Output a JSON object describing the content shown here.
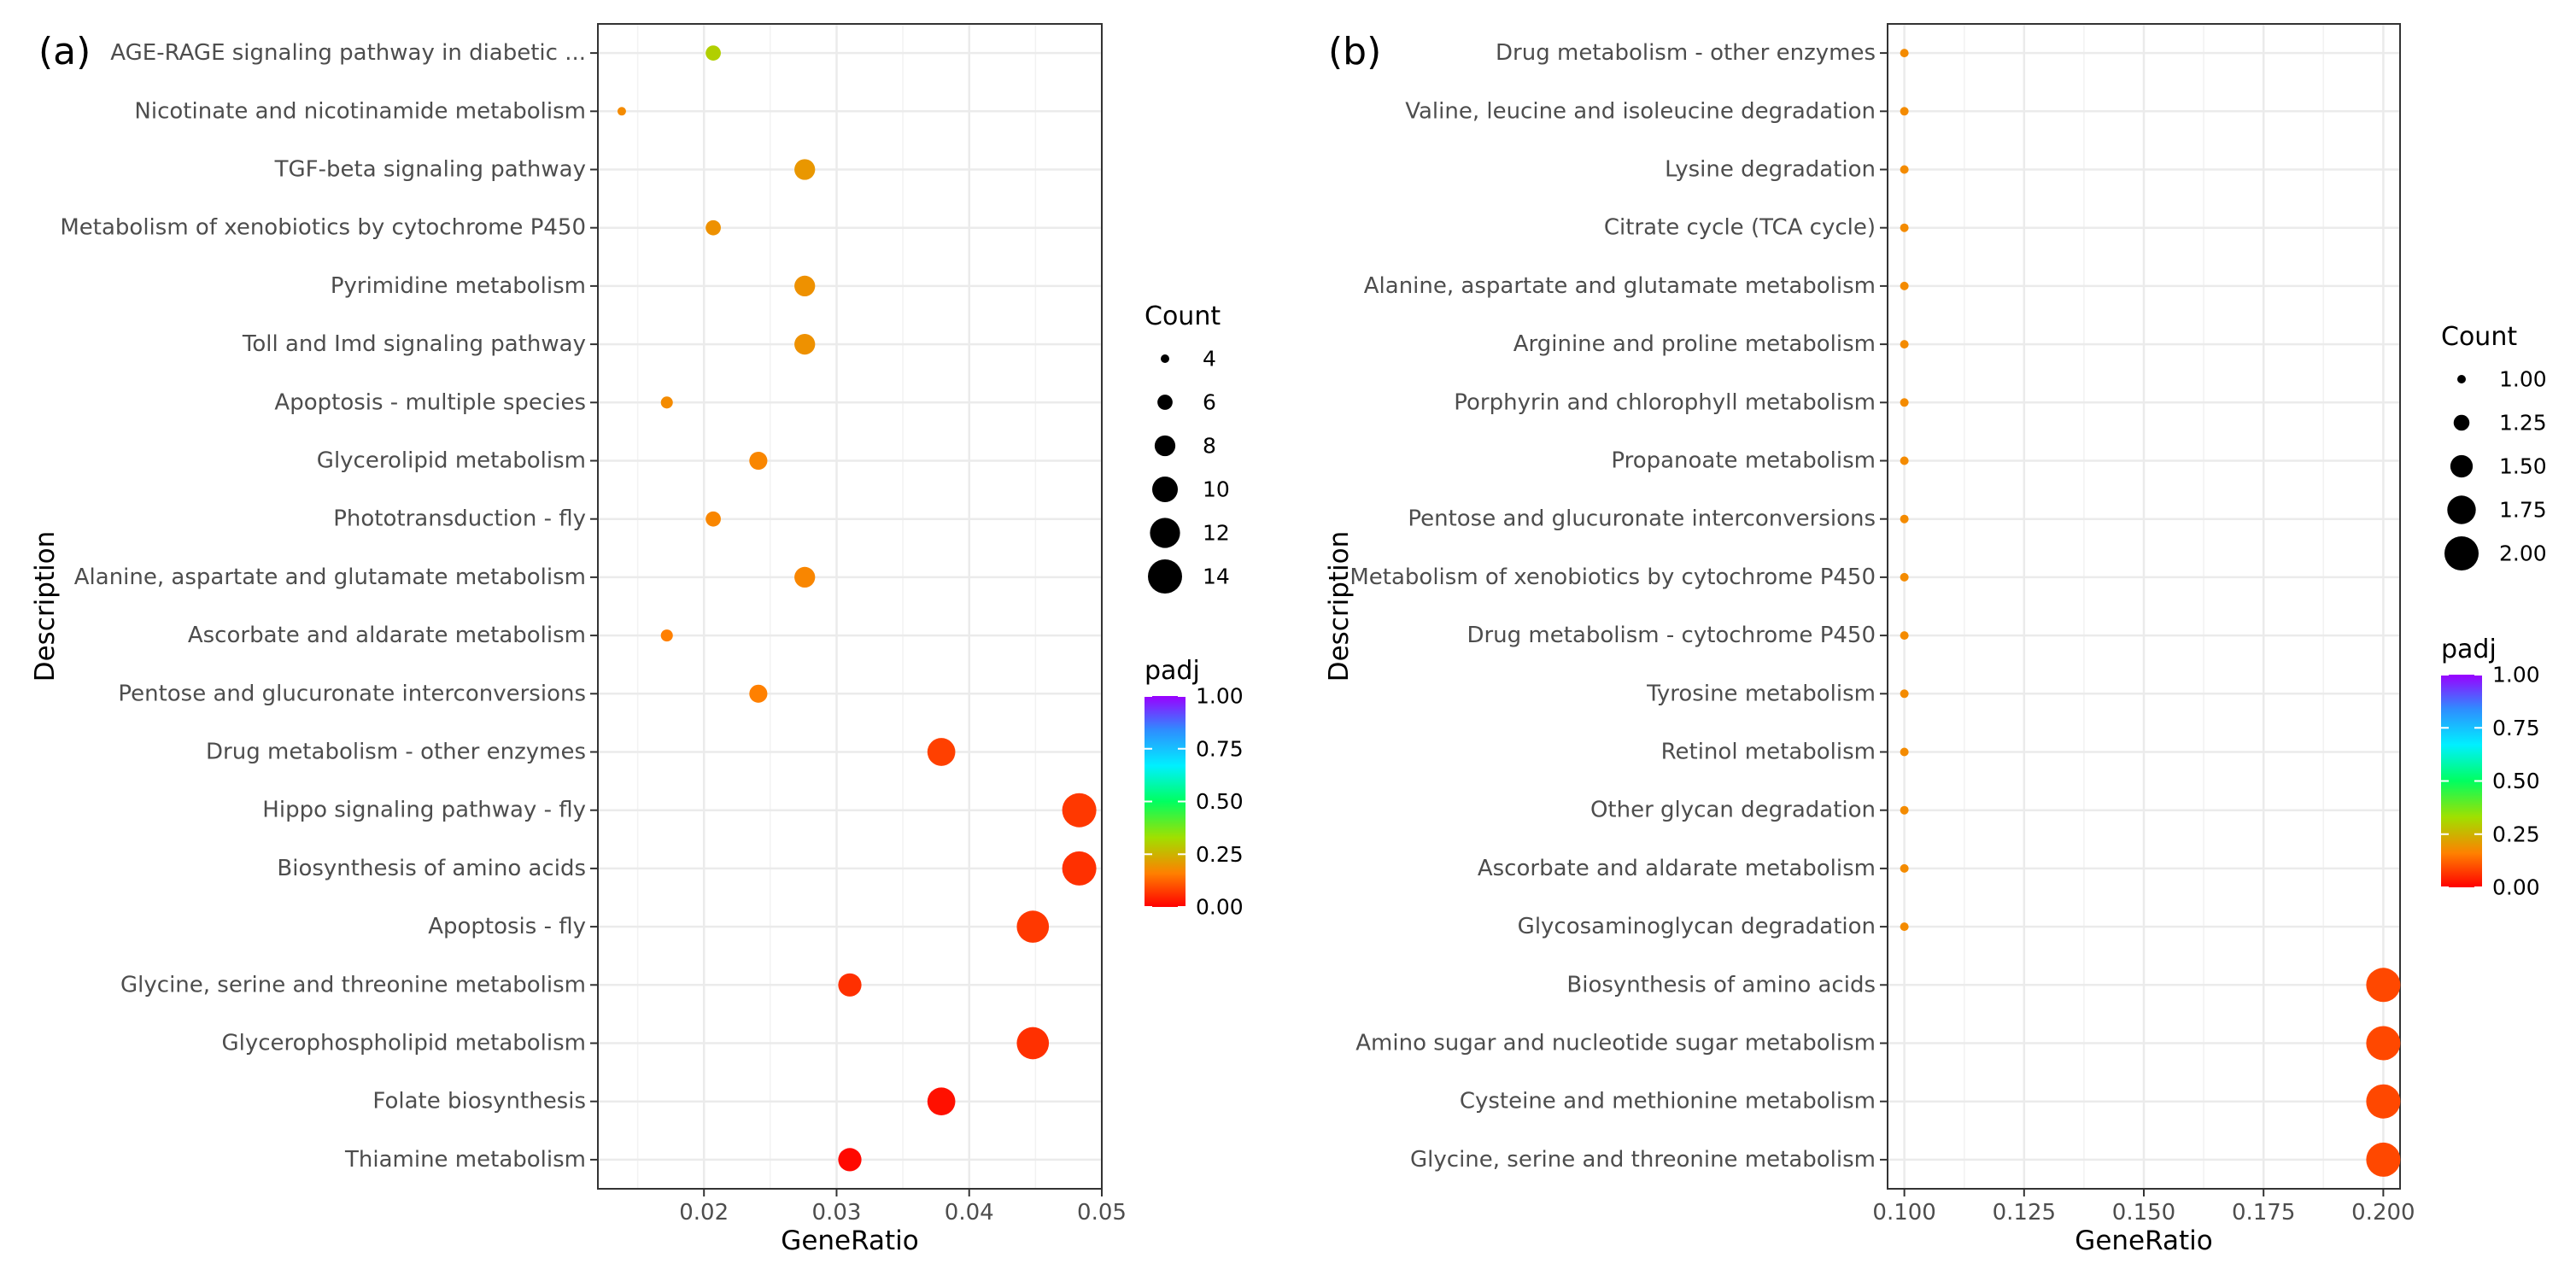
{
  "chart_data": [
    {
      "panel_label": "(a)",
      "type": "scatter",
      "xlabel": "GeneRatio",
      "ylabel": "Description",
      "xlim": [
        0.012,
        0.05
      ],
      "xticks": [
        0.02,
        0.03,
        0.04,
        0.05
      ],
      "xtick_labels": [
        "0.02",
        "0.03",
        "0.04",
        "0.05"
      ],
      "grid": true,
      "categories": [
        "AGE-RAGE signaling pathway in diabetic ...",
        "Nicotinate and nicotinamide metabolism",
        "TGF-beta signaling pathway",
        "Metabolism of xenobiotics by cytochrome P450",
        "Pyrimidine metabolism",
        "Toll and Imd signaling pathway",
        "Apoptosis - multiple species",
        "Glycerolipid metabolism",
        "Phototransduction - fly",
        "Alanine, aspartate and glutamate metabolism",
        "Ascorbate and aldarate metabolism",
        "Pentose and glucuronate interconversions",
        "Drug metabolism - other enzymes",
        "Hippo signaling pathway - fly",
        "Biosynthesis of amino acids",
        "Apoptosis - fly",
        "Glycine, serine and threonine metabolism",
        "Glycerophospholipid metabolism",
        "Folate biosynthesis",
        "Thiamine metabolism"
      ],
      "gene_ratio": [
        0.0207,
        0.0138,
        0.0276,
        0.0207,
        0.0276,
        0.0276,
        0.0172,
        0.0241,
        0.0207,
        0.0276,
        0.0172,
        0.0241,
        0.0379,
        0.0483,
        0.0483,
        0.0448,
        0.031,
        0.0448,
        0.0379,
        0.031
      ],
      "count": [
        6,
        4,
        8,
        6,
        8,
        8,
        5,
        7,
        6,
        8,
        5,
        7,
        11,
        14,
        14,
        13,
        9,
        13,
        11,
        9
      ],
      "padj": [
        0.3,
        0.18,
        0.2,
        0.19,
        0.19,
        0.19,
        0.18,
        0.17,
        0.17,
        0.17,
        0.16,
        0.16,
        0.08,
        0.07,
        0.06,
        0.07,
        0.06,
        0.06,
        0.02,
        0.01
      ],
      "size_legend": {
        "title": "Count",
        "values": [
          4,
          6,
          8,
          10,
          12,
          14
        ],
        "labels": [
          "4",
          "6",
          "8",
          "10",
          "12",
          "14"
        ],
        "range": [
          4,
          14
        ]
      },
      "color_legend": {
        "title": "padj",
        "ticks": [
          1.0,
          0.75,
          0.5,
          0.25,
          0.0
        ],
        "labels": [
          "1.00",
          "0.75",
          "0.50",
          "0.25",
          "0.00"
        ]
      }
    },
    {
      "panel_label": "(b)",
      "type": "scatter",
      "xlabel": "GeneRatio",
      "ylabel": "Description",
      "xlim": [
        0.0965,
        0.2035
      ],
      "xticks": [
        0.1,
        0.125,
        0.15,
        0.175,
        0.2
      ],
      "xtick_labels": [
        "0.100",
        "0.125",
        "0.150",
        "0.175",
        "0.200"
      ],
      "grid": true,
      "categories": [
        "Drug metabolism - other enzymes",
        "Valine, leucine and isoleucine degradation",
        "Lysine degradation",
        "Citrate cycle (TCA cycle)",
        "Alanine, aspartate and glutamate metabolism",
        "Arginine and proline metabolism",
        "Porphyrin and chlorophyll metabolism",
        "Propanoate metabolism",
        "Pentose and glucuronate interconversions",
        "Metabolism of xenobiotics by cytochrome P450",
        "Drug metabolism - cytochrome P450",
        "Tyrosine metabolism",
        "Retinol metabolism",
        "Other glycan degradation",
        "Ascorbate and aldarate metabolism",
        "Glycosaminoglycan degradation",
        "Biosynthesis of amino acids",
        "Amino sugar and nucleotide sugar metabolism",
        "Cysteine and methionine metabolism",
        "Glycine, serine and threonine metabolism"
      ],
      "gene_ratio": [
        0.1,
        0.1,
        0.1,
        0.1,
        0.1,
        0.1,
        0.1,
        0.1,
        0.1,
        0.1,
        0.1,
        0.1,
        0.1,
        0.1,
        0.1,
        0.1,
        0.2,
        0.2,
        0.2,
        0.2
      ],
      "count": [
        1,
        1,
        1,
        1,
        1,
        1,
        1,
        1,
        1,
        1,
        1,
        1,
        1,
        1,
        1,
        1,
        2,
        2,
        2,
        2
      ],
      "padj": [
        0.18,
        0.18,
        0.18,
        0.18,
        0.18,
        0.18,
        0.18,
        0.18,
        0.18,
        0.18,
        0.18,
        0.18,
        0.18,
        0.18,
        0.18,
        0.18,
        0.09,
        0.09,
        0.09,
        0.09
      ],
      "size_legend": {
        "title": "Count",
        "values": [
          1.0,
          1.25,
          1.5,
          1.75,
          2.0
        ],
        "labels": [
          "1.00",
          "1.25",
          "1.50",
          "1.75",
          "2.00"
        ],
        "range": [
          1,
          2
        ]
      },
      "color_legend": {
        "title": "padj",
        "ticks": [
          1.0,
          0.75,
          0.5,
          0.25,
          0.0
        ],
        "labels": [
          "1.00",
          "0.75",
          "0.50",
          "0.25",
          "0.00"
        ]
      }
    }
  ]
}
